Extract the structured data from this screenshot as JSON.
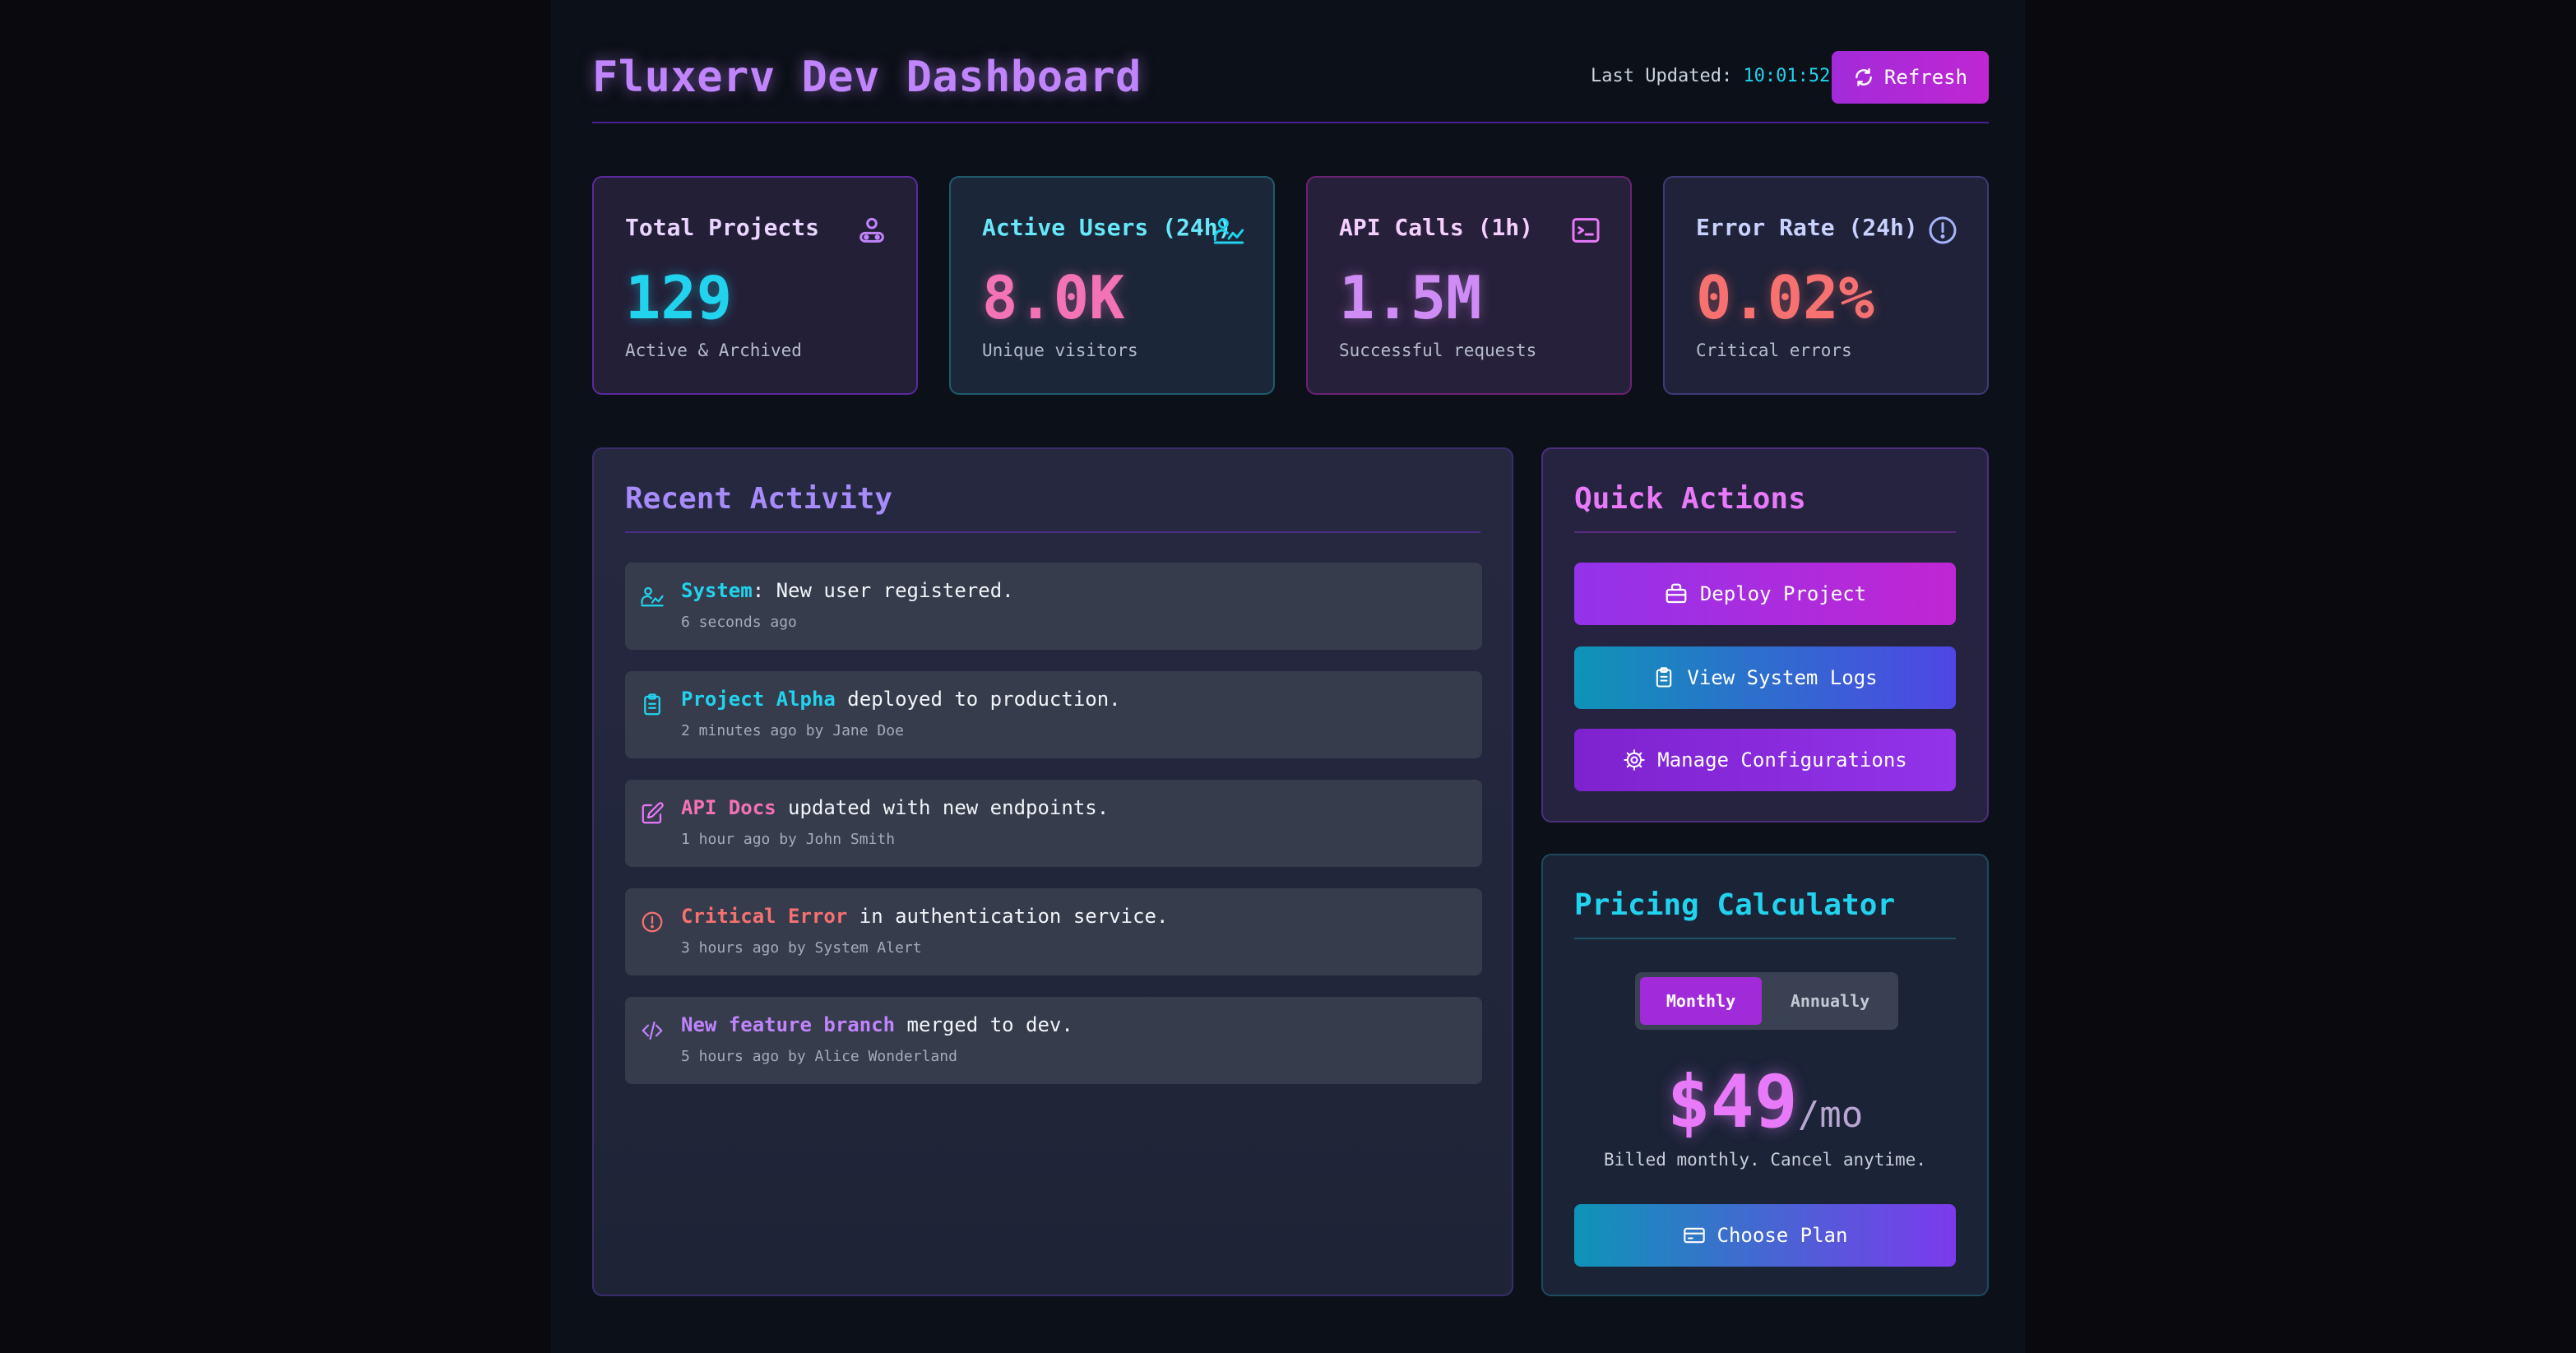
{
  "header": {
    "title": "Fluxerv Dev Dashboard",
    "last_updated_label": "Last Updated:",
    "last_updated_time": "10:01:52",
    "refresh_label": "Refresh"
  },
  "stats": [
    {
      "label": "Total Projects",
      "value": "129",
      "sub": "Active & Archived",
      "icon": "users-icon"
    },
    {
      "label": "Active Users (24h)",
      "value": "8.0K",
      "sub": "Unique visitors",
      "icon": "user-activity-icon"
    },
    {
      "label": "API Calls (1h)",
      "value": "1.5M",
      "sub": "Successful requests",
      "icon": "terminal-icon"
    },
    {
      "label": "Error Rate (24h)",
      "value": "0.02%",
      "sub": "Critical errors",
      "icon": "alert-circle-icon"
    }
  ],
  "activity": {
    "title": "Recent Activity",
    "items": [
      {
        "highlight": "System",
        "highlight_color": "#22d3ee",
        "text": ": New user registered.",
        "meta": "6 seconds ago",
        "icon": "user-activity-icon",
        "icon_color": "#22d3ee"
      },
      {
        "highlight": "Project Alpha",
        "highlight_color": "#22d3ee",
        "text": " deployed to production.",
        "meta": "2 minutes ago by Jane Doe",
        "icon": "clipboard-icon",
        "icon_color": "#22d3ee"
      },
      {
        "highlight": "API Docs",
        "highlight_color": "#f472b6",
        "text": " updated with new endpoints.",
        "meta": "1 hour ago by John Smith",
        "icon": "edit-icon",
        "icon_color": "#e879f9"
      },
      {
        "highlight": "Critical Error",
        "highlight_color": "#f87171",
        "text": " in authentication service.",
        "meta": "3 hours ago by System Alert",
        "icon": "alert-circle-icon",
        "icon_color": "#f87171"
      },
      {
        "highlight": "New feature branch",
        "highlight_color": "#c084fc",
        "text": " merged to dev.",
        "meta": "5 hours ago by Alice Wonderland",
        "icon": "code-icon",
        "icon_color": "#c084fc"
      }
    ]
  },
  "quick_actions": {
    "title": "Quick Actions",
    "buttons": [
      {
        "label": "Deploy Project",
        "icon": "package-icon"
      },
      {
        "label": "View System Logs",
        "icon": "clipboard-icon"
      },
      {
        "label": "Manage Configurations",
        "icon": "gear-icon"
      }
    ]
  },
  "pricing": {
    "title": "Pricing Calculator",
    "toggle": {
      "monthly": "Monthly",
      "annually": "Annually",
      "selected": "Monthly"
    },
    "amount": "$49",
    "period": "/mo",
    "note": "Billed monthly. Cancel anytime.",
    "cta": "Choose Plan",
    "cta_icon": "credit-card-icon"
  },
  "colors": {
    "accent_purple": "#a22bd9",
    "accent_cyan": "#22d3ee",
    "accent_pink": "#e879f9",
    "error_red": "#f87171"
  }
}
